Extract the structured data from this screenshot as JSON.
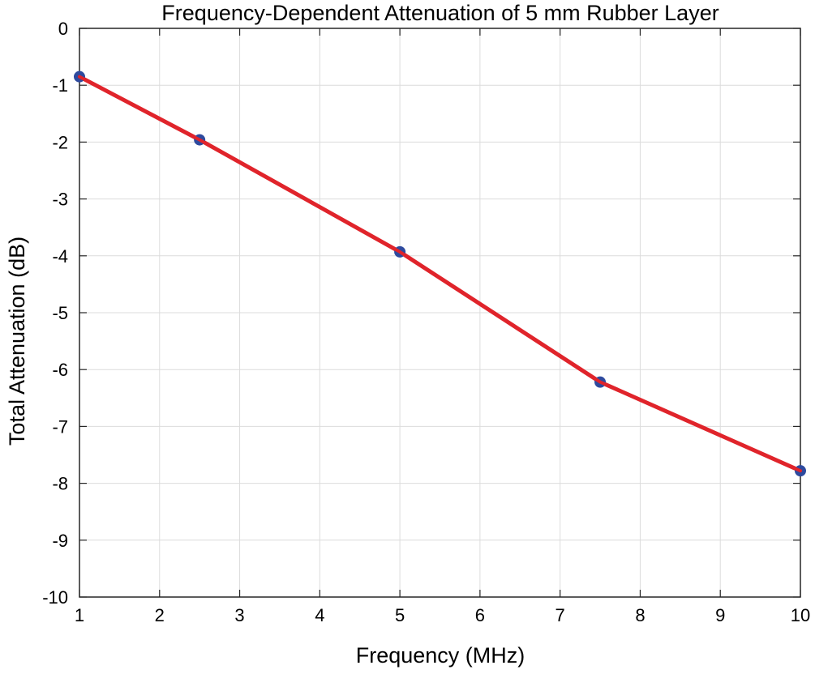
{
  "chart_data": {
    "type": "line",
    "title": "Frequency-Dependent Attenuation of 5 mm Rubber Layer",
    "xlabel": "Frequency (MHz)",
    "ylabel": "Total Attenuation (dB)",
    "xlim": [
      1,
      10
    ],
    "ylim": [
      -10,
      0
    ],
    "xticks": [
      1,
      2,
      3,
      4,
      5,
      6,
      7,
      8,
      9,
      10
    ],
    "yticks": [
      0,
      -1,
      -2,
      -3,
      -4,
      -5,
      -6,
      -7,
      -8,
      -9,
      -10
    ],
    "grid": true,
    "series": [
      {
        "name": "Total Attenuation",
        "x": [
          1,
          2.5,
          5,
          7.5,
          10
        ],
        "y": [
          -0.85,
          -1.96,
          -3.93,
          -6.22,
          -7.78
        ],
        "line_color": "#e0242b",
        "marker_color": "#2e4a9e"
      }
    ]
  }
}
